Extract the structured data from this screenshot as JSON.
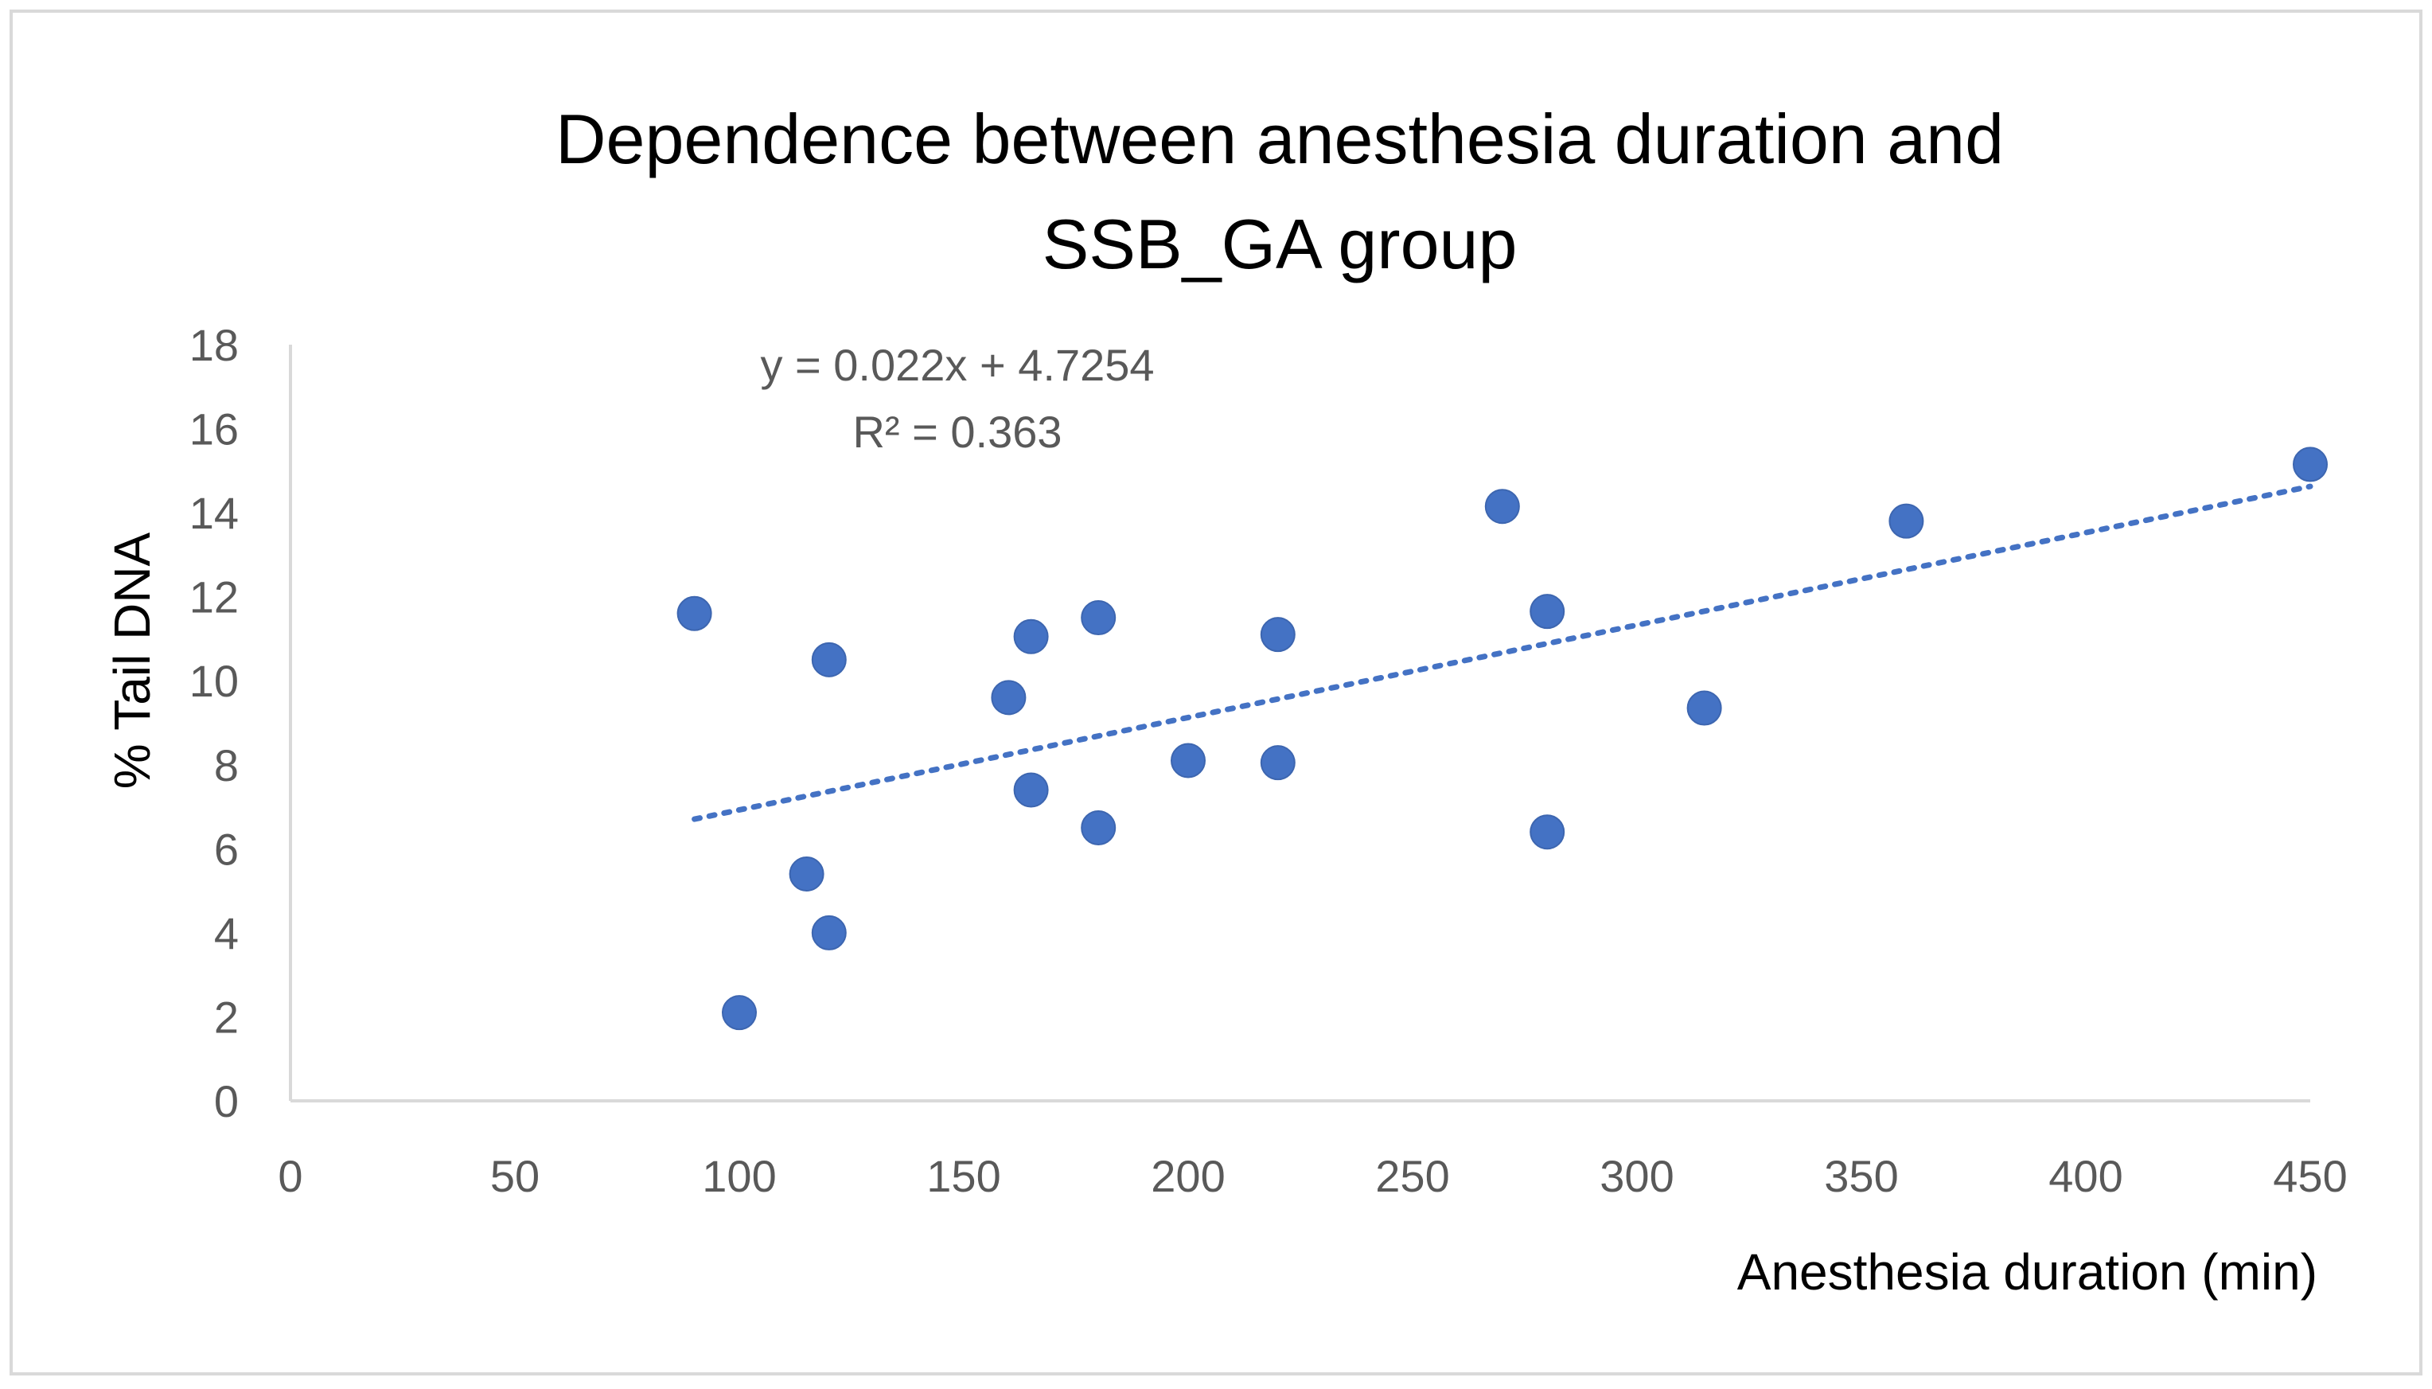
{
  "chart_data": {
    "type": "scatter",
    "title": [
      "Dependence between anesthesia duration and",
      "SSB_GA group"
    ],
    "xlabel": "Anesthesia duration (min)",
    "ylabel": "% Tail DNA",
    "xlim": [
      0,
      450
    ],
    "ylim": [
      0,
      18
    ],
    "xticks": [
      0,
      50,
      100,
      150,
      200,
      250,
      300,
      350,
      400,
      450
    ],
    "yticks": [
      0,
      2,
      4,
      6,
      8,
      10,
      12,
      14,
      16,
      18
    ],
    "grid": false,
    "series": [
      {
        "name": "SSB_GA",
        "x": [
          90,
          100,
          115,
          120,
          120,
          160,
          165,
          165,
          180,
          180,
          200,
          220,
          220,
          270,
          280,
          280,
          315,
          360,
          450
        ],
        "y": [
          11.6,
          2.1,
          5.4,
          4.0,
          10.5,
          9.6,
          11.05,
          7.4,
          11.5,
          6.5,
          8.1,
          8.05,
          11.1,
          14.15,
          11.65,
          6.4,
          9.35,
          13.8,
          15.15
        ],
        "color": "#4472C4"
      }
    ],
    "trendline": {
      "type": "linear",
      "slope": 0.022,
      "intercept": 4.7254,
      "x_range": [
        90,
        450
      ],
      "style": "dotted",
      "color": "#4472C4",
      "equation_label": "y = 0.022x + 4.7254",
      "r2_label": "R² = 0.363"
    }
  }
}
